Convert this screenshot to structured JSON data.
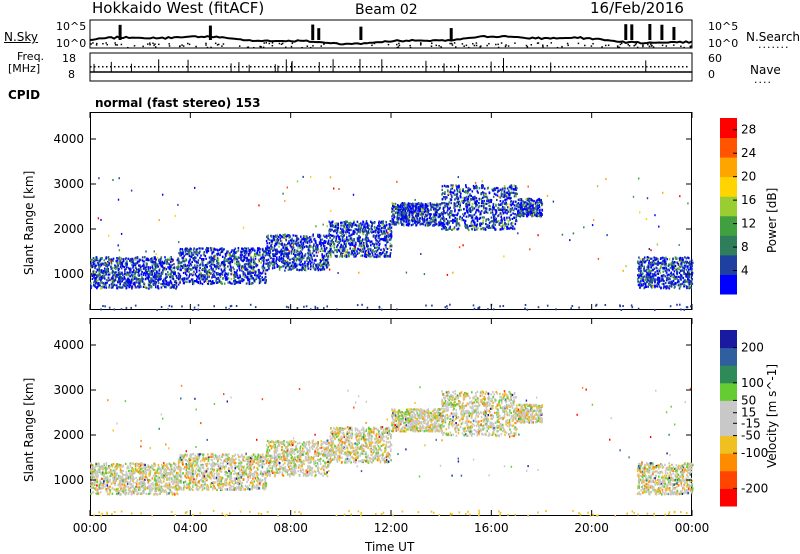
{
  "header": {
    "station": "Hokkaido West (fitACF)",
    "beam": "Beam 02",
    "date": "16/Feb/2016"
  },
  "strip": {
    "nsky_label": "N.Sky",
    "nsky_top": "10^5",
    "nsky_bottom": "10^0",
    "nsearch_top": "10^5",
    "nsearch_bottom": "10^0",
    "nsearch_label": "N.Search",
    "freq_label_1": "Freq.",
    "freq_label_2": "[MHz]",
    "freq_top": "18",
    "freq_bottom": "8",
    "nave_top": "60",
    "nave_bottom": "0",
    "nave_label": "Nave",
    "cpid_label": "CPID",
    "cpid_value": "normal (fast stereo) 153"
  },
  "colors": {
    "power": [
      "#0000ff",
      "#2040a0",
      "#2e7d5b",
      "#40a040",
      "#9acd32",
      "#ffd400",
      "#ffa500",
      "#ff5500",
      "#ff0000"
    ],
    "velocity": [
      "#1a1aa0",
      "#2f5f9f",
      "#2e8b57",
      "#66cc33",
      "#c8c8c8",
      "#c8c8c8",
      "#f0c020",
      "#ff8c00",
      "#ff4500",
      "#ff0000"
    ]
  },
  "chart_data": [
    {
      "type": "heatmap",
      "title": "",
      "ylabel": "Slant Range [km]",
      "xlabel": "",
      "x_ticks": [
        "00:00",
        "04:00",
        "08:00",
        "12:00",
        "16:00",
        "20:00",
        "00:00"
      ],
      "y_ticks": [
        1000,
        2000,
        3000,
        4000
      ],
      "ylim": [
        200,
        4600
      ],
      "xlim_hours": [
        0,
        24
      ],
      "colorbar_label": "Power [dB]",
      "colorbar_ticks": [
        4,
        8,
        12,
        16,
        20,
        24,
        28
      ],
      "colorbar_range": [
        0,
        30
      ],
      "scatter_bands": [
        {
          "t0": 0.0,
          "t1": 3.5,
          "r0": 700,
          "r1": 1400
        },
        {
          "t0": 3.5,
          "t1": 7.0,
          "r0": 800,
          "r1": 1600
        },
        {
          "t0": 7.0,
          "t1": 9.5,
          "r0": 1100,
          "r1": 1900
        },
        {
          "t0": 9.5,
          "t1": 12.0,
          "r0": 1400,
          "r1": 2200
        },
        {
          "t0": 12.0,
          "t1": 14.0,
          "r0": 2100,
          "r1": 2600
        },
        {
          "t0": 14.0,
          "t1": 17.0,
          "r0": 2000,
          "r1": 3000
        },
        {
          "t0": 17.0,
          "t1": 18.0,
          "r0": 2300,
          "r1": 2700
        },
        {
          "t0": 21.8,
          "t1": 24.0,
          "r0": 700,
          "r1": 1400
        }
      ]
    },
    {
      "type": "heatmap",
      "title": "",
      "ylabel": "Slant Range [km]",
      "xlabel": "Time UT",
      "x_ticks": [
        "00:00",
        "04:00",
        "08:00",
        "12:00",
        "16:00",
        "20:00",
        "00:00"
      ],
      "y_ticks": [
        1000,
        2000,
        3000,
        4000
      ],
      "ylim": [
        200,
        4600
      ],
      "xlim_hours": [
        0,
        24
      ],
      "colorbar_label": "Velocity [m s^-1]",
      "colorbar_ticks": [
        200,
        100,
        50,
        15,
        -15,
        -50,
        -100,
        -200
      ],
      "colorbar_range": [
        -250,
        250
      ],
      "scatter_bands": [
        {
          "t0": 0.0,
          "t1": 3.5,
          "r0": 700,
          "r1": 1400
        },
        {
          "t0": 3.5,
          "t1": 7.0,
          "r0": 800,
          "r1": 1600
        },
        {
          "t0": 7.0,
          "t1": 9.5,
          "r0": 1100,
          "r1": 1900
        },
        {
          "t0": 9.5,
          "t1": 12.0,
          "r0": 1400,
          "r1": 2200
        },
        {
          "t0": 12.0,
          "t1": 14.0,
          "r0": 2100,
          "r1": 2600
        },
        {
          "t0": 14.0,
          "t1": 17.0,
          "r0": 2000,
          "r1": 3000
        },
        {
          "t0": 17.0,
          "t1": 18.0,
          "r0": 2300,
          "r1": 2700
        },
        {
          "t0": 21.8,
          "t1": 24.0,
          "r0": 700,
          "r1": 1400
        }
      ]
    }
  ]
}
